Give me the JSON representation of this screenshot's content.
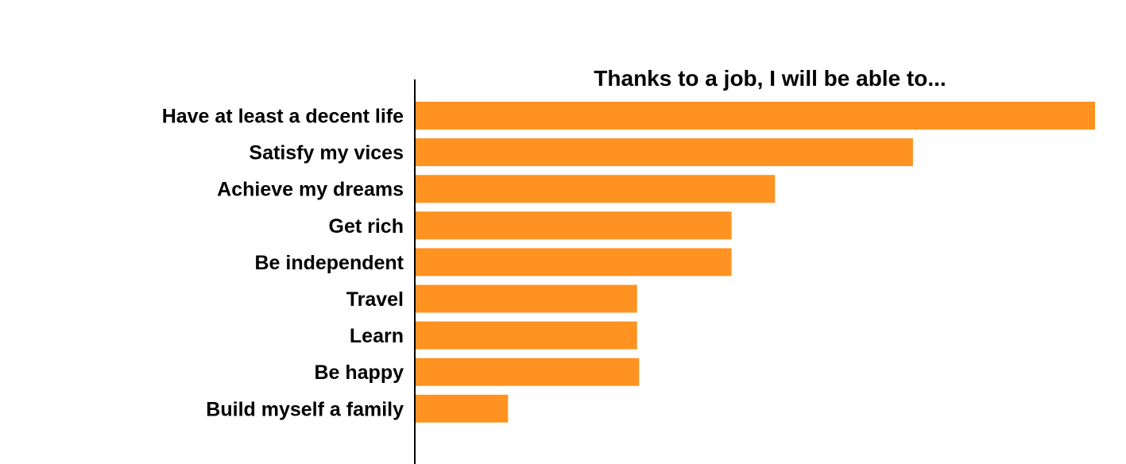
{
  "chart_data": {
    "type": "bar",
    "orientation": "horizontal",
    "title": "Thanks to a job, I will be able to...",
    "categories": [
      "Have at least a decent life",
      "Satisfy my vices",
      "Achieve my dreams",
      "Get rich",
      "Be independent",
      "Travel",
      "Learn",
      "Be happy",
      "Build myself a family"
    ],
    "values": [
      100,
      73.2,
      52.9,
      46.5,
      46.5,
      32.6,
      32.6,
      32.9,
      13.6
    ],
    "xlim": [
      0,
      100
    ],
    "xlabel": "",
    "ylabel": "",
    "grid": false,
    "legend": "none",
    "bar_color": "#FF9220",
    "axis_color": "#000000"
  }
}
